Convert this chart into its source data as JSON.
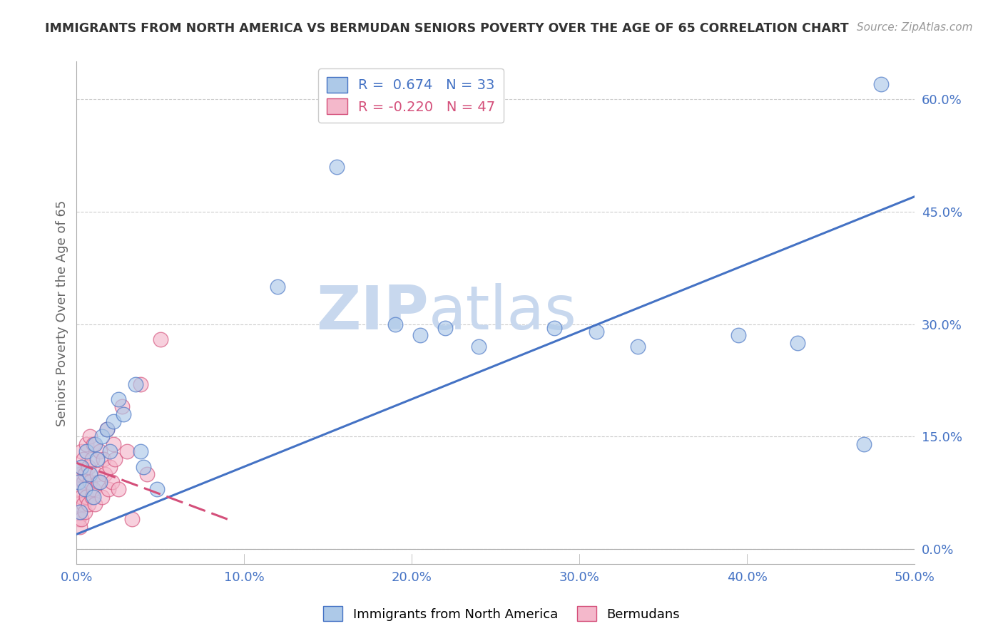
{
  "title": "IMMIGRANTS FROM NORTH AMERICA VS BERMUDAN SENIORS POVERTY OVER THE AGE OF 65 CORRELATION CHART",
  "source_text": "Source: ZipAtlas.com",
  "ylabel": "Seniors Poverty Over the Age of 65",
  "xlabel_blue": "Immigrants from North America",
  "xlabel_pink": "Bermudans",
  "blue_R": 0.674,
  "blue_N": 33,
  "pink_R": -0.22,
  "pink_N": 47,
  "blue_color": "#adc9e8",
  "blue_line_color": "#4472c4",
  "pink_color": "#f4b8cb",
  "pink_line_color": "#d44f7a",
  "watermark_zip": "ZIP",
  "watermark_atlas": "atlas",
  "watermark_color": "#c8d8ee",
  "xlim": [
    0.0,
    0.5
  ],
  "ylim": [
    -0.02,
    0.65
  ],
  "xticks": [
    0.0,
    0.1,
    0.2,
    0.3,
    0.4,
    0.5
  ],
  "yticks_right": [
    0.0,
    0.15,
    0.3,
    0.45,
    0.6
  ],
  "blue_scatter_x": [
    0.001,
    0.002,
    0.003,
    0.005,
    0.006,
    0.008,
    0.01,
    0.011,
    0.012,
    0.014,
    0.015,
    0.018,
    0.02,
    0.022,
    0.025,
    0.028,
    0.035,
    0.038,
    0.04,
    0.048,
    0.12,
    0.155,
    0.19,
    0.205,
    0.22,
    0.24,
    0.285,
    0.31,
    0.335,
    0.395,
    0.43,
    0.47,
    0.48
  ],
  "blue_scatter_y": [
    0.09,
    0.05,
    0.11,
    0.08,
    0.13,
    0.1,
    0.07,
    0.14,
    0.12,
    0.09,
    0.15,
    0.16,
    0.13,
    0.17,
    0.2,
    0.18,
    0.22,
    0.13,
    0.11,
    0.08,
    0.35,
    0.51,
    0.3,
    0.285,
    0.295,
    0.27,
    0.295,
    0.29,
    0.27,
    0.285,
    0.275,
    0.14,
    0.62
  ],
  "pink_scatter_x": [
    0.001,
    0.001,
    0.001,
    0.002,
    0.002,
    0.002,
    0.002,
    0.003,
    0.003,
    0.003,
    0.003,
    0.004,
    0.004,
    0.004,
    0.005,
    0.005,
    0.005,
    0.006,
    0.006,
    0.007,
    0.007,
    0.008,
    0.008,
    0.009,
    0.009,
    0.01,
    0.01,
    0.011,
    0.012,
    0.013,
    0.014,
    0.015,
    0.016,
    0.017,
    0.018,
    0.019,
    0.02,
    0.021,
    0.022,
    0.023,
    0.025,
    0.027,
    0.03,
    0.033,
    0.038,
    0.042,
    0.05
  ],
  "pink_scatter_y": [
    0.06,
    0.04,
    0.09,
    0.05,
    0.08,
    0.03,
    0.1,
    0.07,
    0.04,
    0.11,
    0.13,
    0.06,
    0.09,
    0.12,
    0.05,
    0.1,
    0.08,
    0.07,
    0.14,
    0.06,
    0.11,
    0.09,
    0.15,
    0.07,
    0.12,
    0.08,
    0.14,
    0.06,
    0.1,
    0.09,
    0.13,
    0.07,
    0.12,
    0.1,
    0.16,
    0.08,
    0.11,
    0.09,
    0.14,
    0.12,
    0.08,
    0.19,
    0.13,
    0.04,
    0.22,
    0.1,
    0.28
  ],
  "background_color": "#ffffff",
  "grid_color": "#cccccc",
  "tick_label_color_right": "#4472c4",
  "tick_label_color_x": "#4472c4",
  "blue_line_x": [
    0.0,
    0.5
  ],
  "blue_line_y": [
    0.02,
    0.47
  ],
  "pink_line_x": [
    0.0,
    0.09
  ],
  "pink_line_y": [
    0.115,
    0.04
  ]
}
